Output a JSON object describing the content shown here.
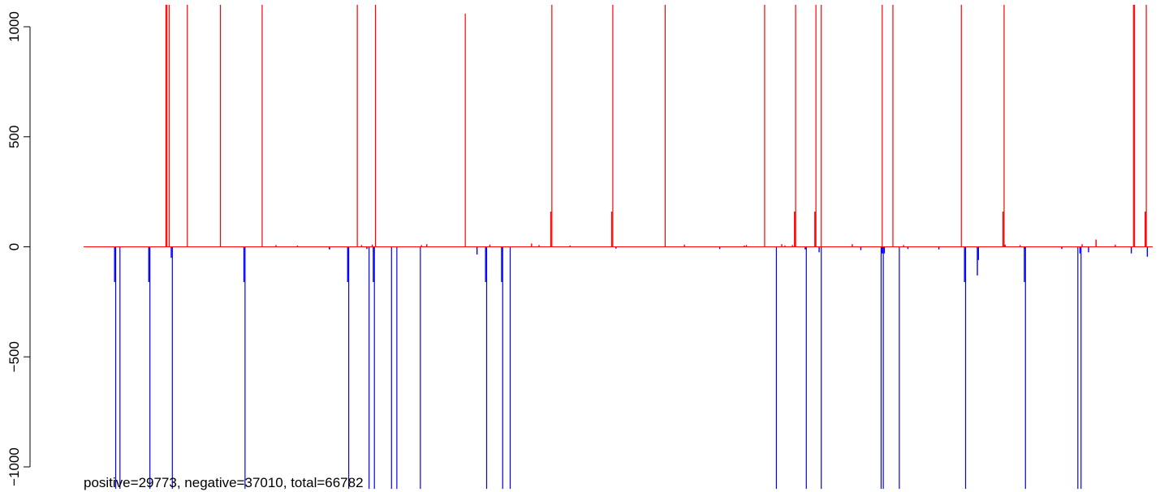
{
  "chart_data": {
    "type": "bar",
    "title": "",
    "xlabel": "",
    "ylabel": "",
    "ylim": [
      -1000,
      1000
    ],
    "y_ticks": [
      -1000,
      -500,
      0,
      500,
      1000
    ],
    "y_tick_labels": [
      "−1000",
      "−500",
      "0",
      "500",
      "1000"
    ],
    "x_axis_shown": false,
    "x_range": [
      0,
      1000
    ],
    "grid": false,
    "annotation": "positive=29773, negative=37010, total=66782",
    "positive_color": "#ff0000",
    "negative_color": "#0000ff",
    "series": [
      {
        "name": "positive",
        "x": [
          77,
          78,
          80,
          97,
          128,
          167,
          256,
          273,
          357,
          437,
          438,
          494,
          495,
          544,
          637,
          665,
          666,
          684,
          685,
          690,
          747,
          757,
          821,
          860,
          861,
          982,
          983,
          993,
          994,
          180,
          200,
          260,
          270,
          316,
          321,
          380,
          419,
          426,
          455,
          562,
          618,
          620,
          653,
          656,
          663,
          719,
          767,
          862,
          876,
          934,
          947,
          965
        ],
        "values": [
          1100,
          1100,
          1100,
          1100,
          1100,
          1100,
          1100,
          1100,
          1060,
          160,
          1100,
          160,
          1100,
          1100,
          1100,
          160,
          1100,
          160,
          1100,
          1100,
          1100,
          1100,
          1100,
          160,
          1100,
          1100,
          1100,
          160,
          1100,
          8,
          6,
          8,
          10,
          8,
          12,
          10,
          15,
          8,
          6,
          10,
          6,
          8,
          12,
          6,
          8,
          12,
          8,
          10,
          8,
          12,
          33,
          10
        ]
      },
      {
        "name": "negative",
        "x": [
          29,
          30,
          34,
          61,
          62,
          82,
          83,
          150,
          151,
          247,
          248,
          267,
          271,
          272,
          288,
          293,
          315,
          376,
          377,
          391,
          392,
          399,
          648,
          676,
          690,
          746,
          747,
          748,
          749,
          763,
          824,
          825,
          836,
          837,
          880,
          881,
          930,
          932,
          933,
          230,
          230,
          265,
          368,
          498,
          595,
          675,
          688,
          727,
          771,
          800,
          880,
          915,
          940,
          980,
          995
        ],
        "values": [
          -160,
          -1100,
          -1100,
          -160,
          -1100,
          -50,
          -1100,
          -160,
          -1100,
          -160,
          -1100,
          -1100,
          -160,
          -1100,
          -1100,
          -1100,
          -1100,
          -160,
          -1100,
          -160,
          -1100,
          -1100,
          -1100,
          -1100,
          -1100,
          -1100,
          -30,
          -1100,
          -30,
          -1100,
          -160,
          -1100,
          -130,
          -60,
          -160,
          -1100,
          -1100,
          -30,
          -1100,
          -12,
          -10,
          -10,
          -35,
          -8,
          -10,
          -12,
          -25,
          -15,
          -10,
          -12,
          -8,
          -10,
          -25,
          -30,
          -45
        ]
      }
    ]
  }
}
